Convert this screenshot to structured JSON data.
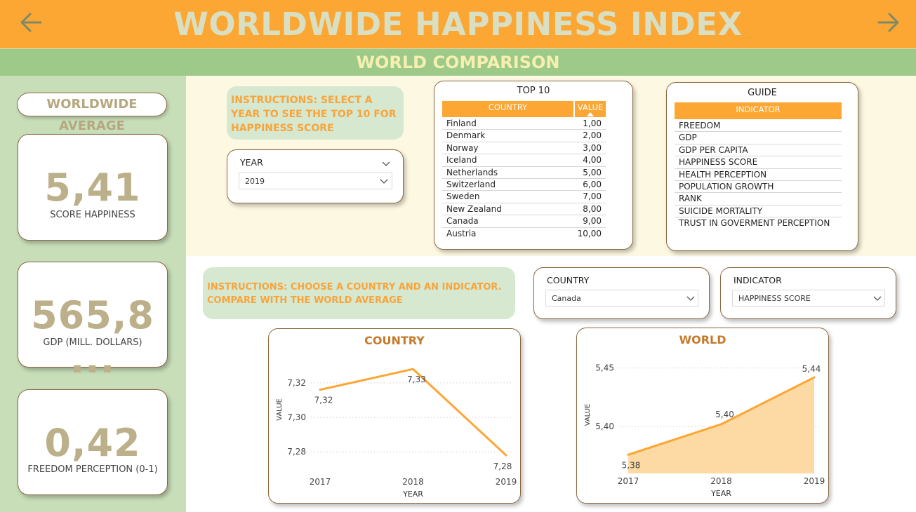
{
  "header": {
    "title": "WORLDWIDE HAPPINESS INDEX",
    "subtitle": "WORLD COMPARISON"
  },
  "left_panel": {
    "label": "WORLDWIDE AVERAGE",
    "kpis": [
      {
        "value": "5,41",
        "label": "SCORE HAPPINESS"
      },
      {
        "value": "565,8 ...",
        "label": "GDP (MILL. DOLLARS)"
      },
      {
        "value": "0,42",
        "label": "FREEDOM PERCEPTION  (0-1)"
      }
    ]
  },
  "instructions": {
    "top": "INSTRUCTIONS: SELECT A YEAR TO SEE THE TOP 10 FOR HAPPINESS SCORE",
    "bottom": "INSTRUCTIONS: CHOOSE A COUNTRY AND AN INDICATOR. COMPARE WITH THE WORLD AVERAGE"
  },
  "slicers": {
    "year": {
      "title": "YEAR",
      "value": "2019"
    },
    "country": {
      "title": "COUNTRY",
      "value": "Canada"
    },
    "indicator": {
      "title": "INDICATOR",
      "value": "HAPPINESS SCORE"
    }
  },
  "top10": {
    "title": "TOP 10",
    "headers": [
      "COUNTRY",
      "VALUE"
    ],
    "rows": [
      [
        "Finland",
        "1,00"
      ],
      [
        "Denmark",
        "2,00"
      ],
      [
        "Norway",
        "3,00"
      ],
      [
        "Iceland",
        "4,00"
      ],
      [
        "Netherlands",
        "5,00"
      ],
      [
        "Switzerland",
        "6,00"
      ],
      [
        "Sweden",
        "7,00"
      ],
      [
        "New Zealand",
        "8,00"
      ],
      [
        "Canada",
        "9,00"
      ],
      [
        "Austria",
        "10,00"
      ]
    ]
  },
  "guide": {
    "title": "GUIDE",
    "header": "INDICATOR",
    "items": [
      "FREEDOM",
      "GDP",
      "GDP PER CAPITA",
      "HAPPINESS SCORE",
      "HEALTH PERCEPTION",
      "POPULATION GROWTH",
      "RANK",
      "SUICIDE MORTALITY",
      "TRUST IN GOVERMENT PERCEPTION"
    ]
  },
  "colors": {
    "orange": "#fca633",
    "green": "#9dca88",
    "area": "#fdd9a3"
  },
  "chart_data": [
    {
      "type": "line",
      "title": "COUNTRY",
      "xlabel": "YEAR",
      "ylabel": "VALUE",
      "x": [
        "2017",
        "2018",
        "2019"
      ],
      "values": [
        7.316,
        7.328,
        7.278
      ],
      "data_labels": [
        "7,32",
        "7,33",
        "7,28"
      ],
      "yticks": [
        7.28,
        7.3,
        7.32
      ],
      "ytick_labels": [
        "7,28",
        "7,30",
        "7,32"
      ],
      "ylim": [
        7.274,
        7.335
      ],
      "grid": true
    },
    {
      "type": "area",
      "title": "WORLD",
      "xlabel": "YEAR",
      "ylabel": "VALUE",
      "x": [
        "2017",
        "2018",
        "2019"
      ],
      "values": [
        5.376,
        5.402,
        5.442
      ],
      "data_labels": [
        "5,38",
        "5,40",
        "5,44"
      ],
      "yticks": [
        5.4,
        5.45
      ],
      "ytick_labels": [
        "5,40",
        "5,45"
      ],
      "ylim": [
        5.36,
        5.46
      ],
      "grid": true
    }
  ]
}
